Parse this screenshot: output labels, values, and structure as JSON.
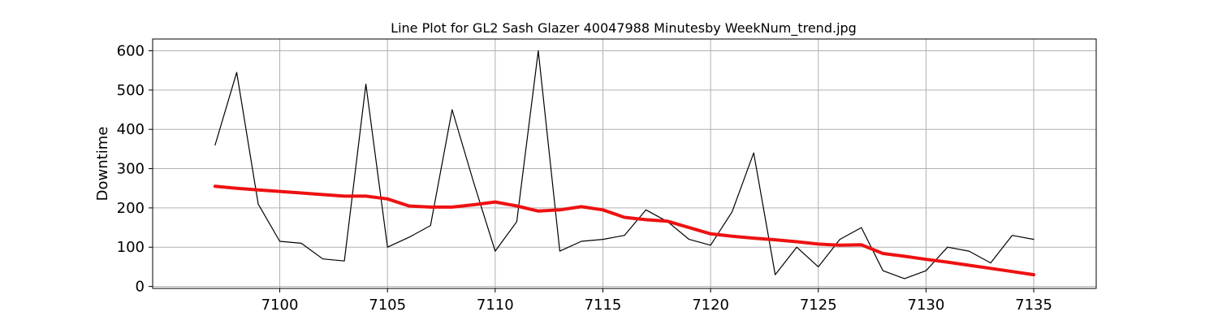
{
  "chart_data": {
    "type": "line",
    "title": "Line Plot for GL2 Sash Glazer 40047988 Minutesby WeekNum_trend.jpg",
    "xlabel": "",
    "ylabel": "Downtime",
    "xlim": [
      7094.1,
      7137.9
    ],
    "ylim": [
      -5,
      630
    ],
    "grid": true,
    "xticks": [
      7100,
      7105,
      7110,
      7115,
      7120,
      7125,
      7130,
      7135
    ],
    "yticks": [
      0,
      100,
      200,
      300,
      400,
      500,
      600
    ],
    "x": [
      7097,
      7098,
      7099,
      7100,
      7101,
      7102,
      7103,
      7104,
      7105,
      7106,
      7107,
      7108,
      7109,
      7110,
      7111,
      7112,
      7113,
      7114,
      7115,
      7116,
      7117,
      7118,
      7119,
      7120,
      7121,
      7122,
      7123,
      7124,
      7125,
      7126,
      7127,
      7128,
      7129,
      7130,
      7131,
      7132,
      7133,
      7134,
      7135
    ],
    "series": [
      {
        "color": "#000000",
        "width": 1.2,
        "values": [
          360,
          545,
          210,
          115,
          110,
          70,
          65,
          515,
          100,
          125,
          155,
          450,
          265,
          90,
          165,
          600,
          90,
          115,
          120,
          130,
          195,
          165,
          120,
          105,
          190,
          340,
          30,
          100,
          50,
          120,
          150,
          40,
          20,
          40,
          100,
          90,
          60,
          130,
          120
        ]
      },
      {
        "color": "#ee1111",
        "width": 4,
        "values": [
          255,
          250,
          246,
          242,
          238,
          234,
          230,
          230,
          223,
          205,
          202,
          202,
          208,
          215,
          205,
          192,
          195,
          203,
          195,
          176,
          170,
          166,
          150,
          134,
          128,
          123,
          119,
          114,
          108,
          105,
          106,
          84,
          77,
          69,
          62,
          54,
          46,
          38,
          30
        ]
      }
    ]
  }
}
